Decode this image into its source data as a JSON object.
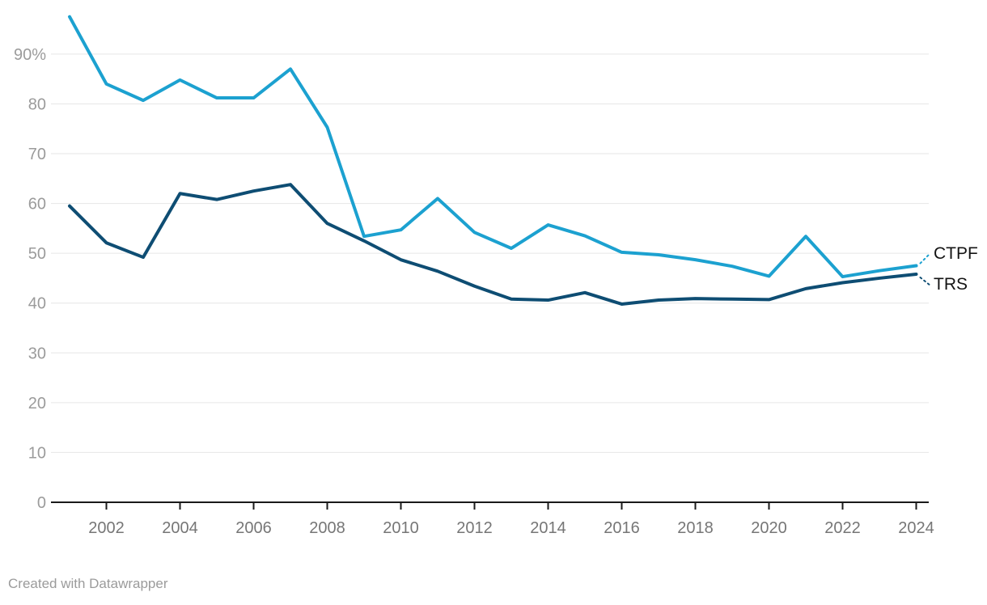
{
  "chart_data": {
    "type": "line",
    "x": [
      2001,
      2002,
      2003,
      2004,
      2005,
      2006,
      2007,
      2008,
      2009,
      2010,
      2011,
      2012,
      2013,
      2014,
      2015,
      2016,
      2017,
      2018,
      2019,
      2020,
      2021,
      2022,
      2023,
      2024
    ],
    "series": [
      {
        "name": "CTPF",
        "color": "#1CA1D0",
        "values": [
          97.5,
          84.0,
          80.7,
          84.8,
          81.2,
          81.2,
          87.0,
          75.3,
          53.4,
          54.7,
          61.0,
          54.2,
          51.0,
          55.7,
          53.5,
          50.2,
          49.7,
          48.7,
          47.4,
          45.4,
          53.4,
          45.3,
          46.5,
          47.5
        ]
      },
      {
        "name": "TRS",
        "color": "#0E4D73",
        "values": [
          59.5,
          52.1,
          49.2,
          62.0,
          60.8,
          62.5,
          63.8,
          56.0,
          52.5,
          48.7,
          46.4,
          43.4,
          40.8,
          40.6,
          42.1,
          39.8,
          40.6,
          40.9,
          40.8,
          40.7,
          42.9,
          44.1,
          45.0,
          45.8
        ]
      }
    ],
    "title": "",
    "xlabel": "",
    "ylabel": "",
    "ylim": [
      0,
      98
    ],
    "yticks": [
      {
        "value": 0,
        "label": "0"
      },
      {
        "value": 10,
        "label": "10"
      },
      {
        "value": 20,
        "label": "20"
      },
      {
        "value": 30,
        "label": "30"
      },
      {
        "value": 40,
        "label": "40"
      },
      {
        "value": 50,
        "label": "50"
      },
      {
        "value": 60,
        "label": "60"
      },
      {
        "value": 70,
        "label": "70"
      },
      {
        "value": 80,
        "label": "80"
      },
      {
        "value": 90,
        "label": "90%"
      }
    ],
    "xticks": [
      2002,
      2004,
      2006,
      2008,
      2010,
      2012,
      2014,
      2016,
      2018,
      2020,
      2022,
      2024
    ],
    "grid": "horizontal",
    "legend_position": "direct-labels-right"
  },
  "labels": {
    "ctpf": "CTPF",
    "trs": "TRS"
  },
  "footer": {
    "text": "Created with Datawrapper"
  },
  "colors": {
    "ctpf_line": "#1CA1D0",
    "trs_line": "#0E4D73",
    "gridline": "#e6e6e6",
    "axis": "#1a1a1a",
    "ytick_label": "#9b9b9b",
    "xtick_label": "#767676",
    "series_label_text": "#141414",
    "footer_text": "#9b9b9b",
    "background": "#ffffff"
  }
}
